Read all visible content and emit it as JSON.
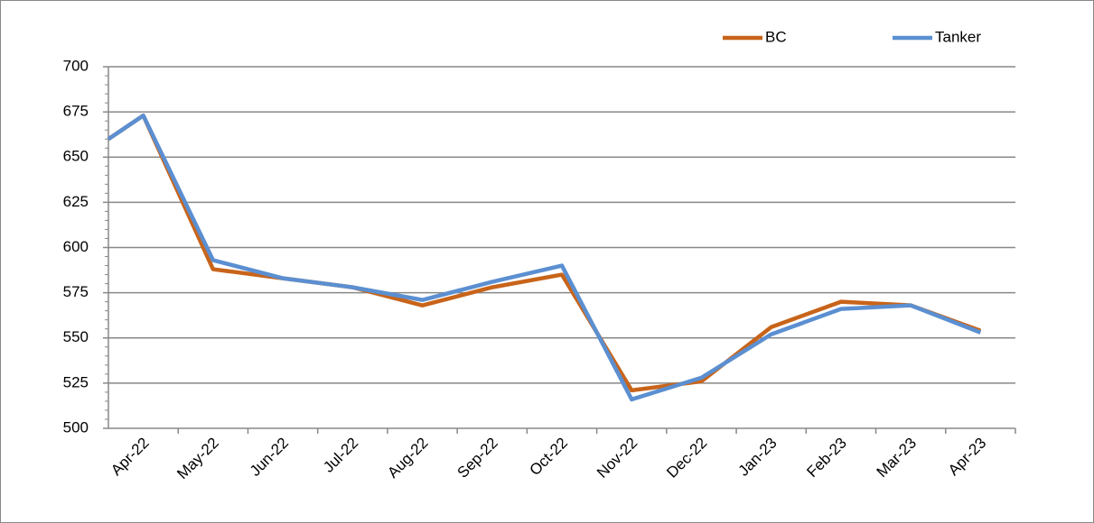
{
  "chart_data": {
    "type": "line",
    "categories": [
      null,
      "Apr-22",
      "May-22",
      "Jun-22",
      "Jul-22",
      "Aug-22",
      "Sep-22",
      "Oct-22",
      "Nov-22",
      "Dec-22",
      "Jan-23",
      "Feb-23",
      "Mar-23",
      "Apr-23"
    ],
    "series": [
      {
        "name": "BC",
        "color": "#c8641a",
        "values": [
          660,
          673,
          588,
          583,
          578,
          568,
          578,
          585,
          521,
          526,
          556,
          570,
          568,
          554
        ]
      },
      {
        "name": "Tanker",
        "color": "#5b8fd1",
        "values": [
          660,
          673,
          593,
          583,
          578,
          571,
          581,
          590,
          516,
          528,
          552,
          566,
          568,
          553
        ]
      }
    ],
    "ylim": [
      500,
      700
    ],
    "yticks": [
      500,
      525,
      550,
      575,
      600,
      625,
      650,
      675,
      700
    ],
    "grid": true,
    "legend": "top-right"
  }
}
